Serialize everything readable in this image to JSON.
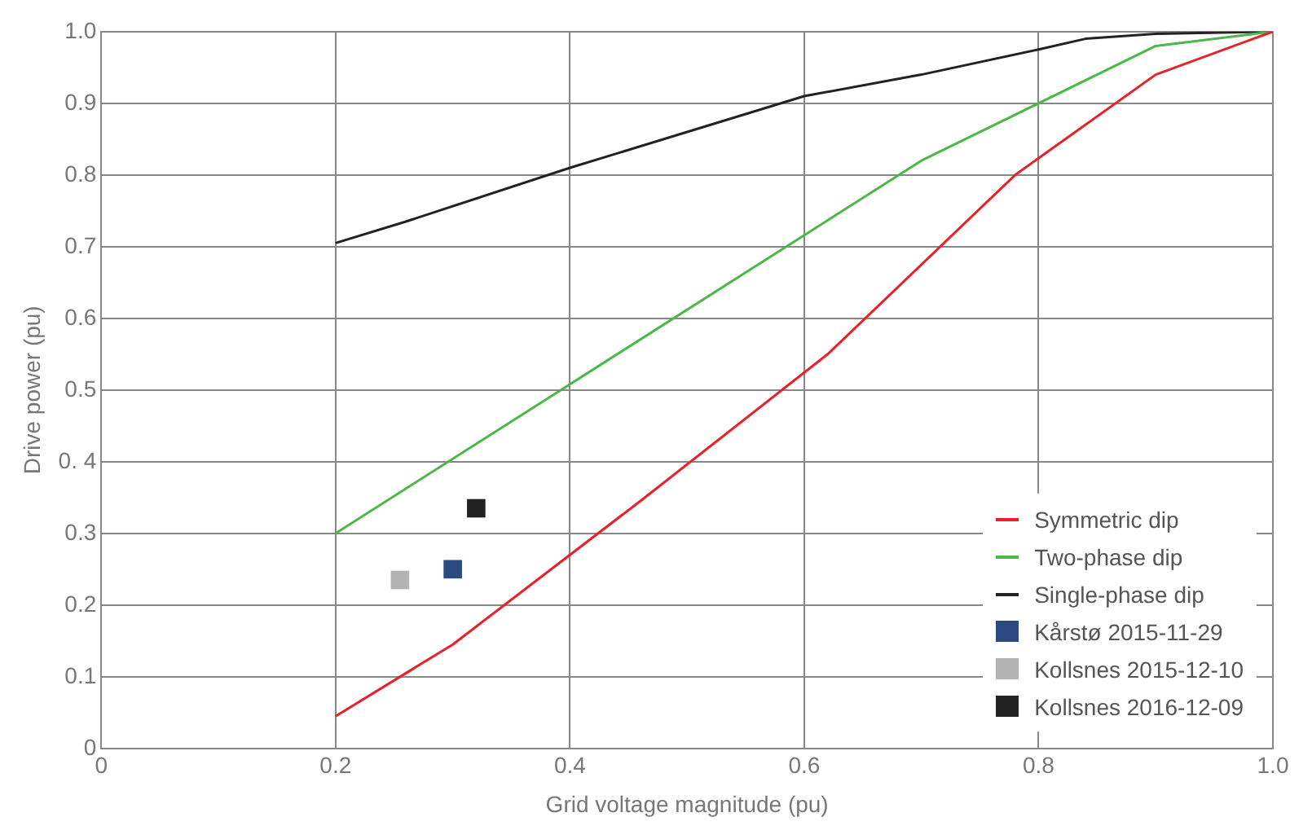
{
  "chart_data": {
    "type": "line",
    "xlabel": "Grid voltage magnitude (pu)",
    "ylabel": "Drive power (pu)",
    "xlim": [
      0,
      1.0
    ],
    "xticks": [
      0,
      0.2,
      0.4,
      0.6,
      0.8,
      {
        "value": 1.0,
        "label": "1.0"
      }
    ],
    "ylim": [
      0,
      1.0
    ],
    "yticks": [
      0,
      0.1,
      0.2,
      0.3,
      {
        "value": 0.4,
        "label": "0. 4"
      },
      0.5,
      0.6,
      0.7,
      0.8,
      0.9,
      {
        "value": 1.0,
        "label": "1.0"
      }
    ],
    "grid": true,
    "legend": "bottom right",
    "series": [
      {
        "name": "Symmetric dip",
        "type": "line",
        "color": "#e8202a",
        "marker": "none",
        "x": [
          0.2,
          0.3,
          0.46,
          0.62,
          0.78,
          0.9,
          1.0
        ],
        "values": [
          0.045,
          0.145,
          0.345,
          0.55,
          0.8,
          0.94,
          1.0
        ]
      },
      {
        "name": "Two-phase dip",
        "type": "line",
        "color": "#4cb849",
        "marker": "none",
        "x": [
          0.2,
          0.7,
          0.9,
          1.0
        ],
        "values": [
          0.3,
          0.82,
          0.98,
          1.0
        ]
      },
      {
        "name": "Single-phase dip",
        "type": "line",
        "color": "#222222",
        "marker": "none",
        "x": [
          0.2,
          0.26,
          0.4,
          0.5,
          0.6,
          0.7,
          0.8,
          0.84,
          0.9,
          1.0
        ],
        "values": [
          0.705,
          0.735,
          0.81,
          0.86,
          0.91,
          0.94,
          0.975,
          0.99,
          0.997,
          1.0
        ]
      },
      {
        "name": "Kårstø 2015-11-29",
        "type": "scatter",
        "color": "#2b4a80",
        "marker": "square",
        "x": [
          0.3
        ],
        "values": [
          0.25
        ]
      },
      {
        "name": "Kollsnes 2015-12-10",
        "type": "scatter",
        "color": "#b3b3b3",
        "marker": "square",
        "x": [
          0.255
        ],
        "values": [
          0.235
        ]
      },
      {
        "name": "Kollsnes 2016-12-09",
        "type": "scatter",
        "color": "#222222",
        "marker": "square",
        "x": [
          0.32
        ],
        "values": [
          0.335
        ]
      }
    ]
  }
}
